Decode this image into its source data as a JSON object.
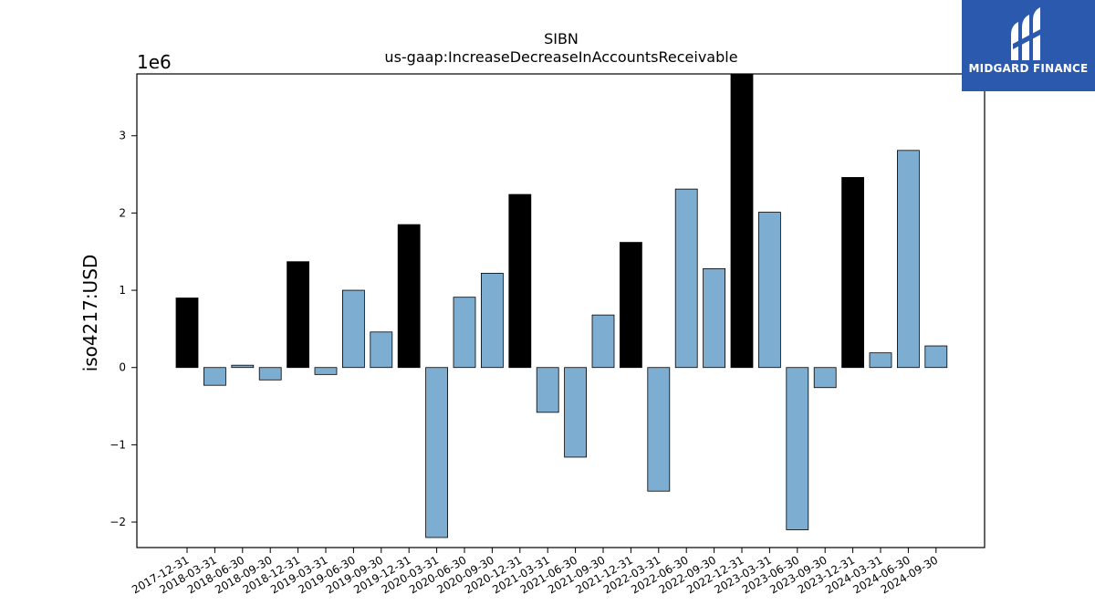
{
  "brand": {
    "name": "MIDGARD FINANCE",
    "bg": "#2b59ad"
  },
  "chart_data": {
    "type": "bar",
    "title": "SIBN",
    "subtitle": "us-gaap:IncreaseDecreaseInAccountsReceivable",
    "ylabel": "iso4217:USD",
    "xlabel": "",
    "y_scale_label": "1e6",
    "ylim": [
      -2.33,
      3.8
    ],
    "yticks": [
      {
        "value": 3,
        "label": "3"
      },
      {
        "value": 2,
        "label": "2"
      },
      {
        "value": 1,
        "label": "1"
      },
      {
        "value": 0,
        "label": "0"
      },
      {
        "value": -1,
        "label": "−1"
      },
      {
        "value": -2,
        "label": "−2"
      }
    ],
    "grid": false,
    "colors": {
      "annual": "#000000",
      "quarterly": "#7eadd2"
    },
    "categories": [
      "2017-12-31",
      "2018-03-31",
      "2018-06-30",
      "2018-09-30",
      "2018-12-31",
      "2019-03-31",
      "2019-06-30",
      "2019-09-30",
      "2019-12-31",
      "2020-03-31",
      "2020-06-30",
      "2020-09-30",
      "2020-12-31",
      "2021-03-31",
      "2021-06-30",
      "2021-09-30",
      "2021-12-31",
      "2022-03-31",
      "2022-06-30",
      "2022-09-30",
      "2022-12-31",
      "2023-03-31",
      "2023-06-30",
      "2023-09-30",
      "2023-12-31",
      "2024-03-31",
      "2024-06-30",
      "2024-09-30"
    ],
    "values": [
      0.9,
      -0.23,
      0.03,
      -0.16,
      1.37,
      -0.09,
      1.0,
      0.46,
      1.85,
      -2.2,
      0.91,
      1.22,
      2.24,
      -0.58,
      -1.16,
      0.68,
      1.62,
      -1.6,
      2.31,
      1.28,
      3.85,
      2.01,
      -2.1,
      -0.26,
      2.46,
      0.19,
      2.81,
      0.28
    ],
    "annual": [
      true,
      false,
      false,
      false,
      true,
      false,
      false,
      false,
      true,
      false,
      false,
      false,
      true,
      false,
      false,
      false,
      true,
      false,
      false,
      false,
      true,
      false,
      false,
      false,
      true,
      false,
      false,
      false
    ]
  }
}
